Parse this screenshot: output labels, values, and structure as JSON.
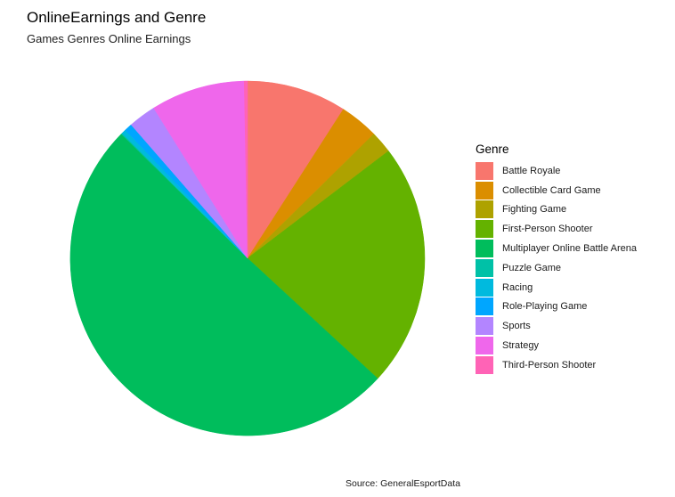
{
  "chart_data": {
    "type": "pie",
    "title": "OnlineEarnings and Genre",
    "subtitle": "Games Genres Online Earnings",
    "legend_title": "Genre",
    "legend_position": "right",
    "caption": "Source: GeneralEsportData",
    "grid": false,
    "slices": [
      {
        "label": "Battle Royale",
        "value": 9.0
      },
      {
        "label": "Collectible Card Game",
        "value": 3.5
      },
      {
        "label": "Fighting Game",
        "value": 2.0
      },
      {
        "label": "First-Person Shooter",
        "value": 22.0
      },
      {
        "label": "Multiplayer Online Battle Arena",
        "value": 50.0
      },
      {
        "label": "Puzzle Game",
        "value": 0.1
      },
      {
        "label": "Racing",
        "value": 0.4
      },
      {
        "label": "Role-Playing Game",
        "value": 0.7
      },
      {
        "label": "Sports",
        "value": 2.5
      },
      {
        "label": "Strategy",
        "value": 8.5
      },
      {
        "label": "Third-Person Shooter",
        "value": 0.3
      }
    ],
    "colors": {
      "Battle Royale": "#F8766D",
      "Collectible Card Game": "#DB8E00",
      "Fighting Game": "#AEA200",
      "First-Person Shooter": "#64B200",
      "Multiplayer Online Battle Arena": "#00BD5C",
      "Puzzle Game": "#00C1A7",
      "Racing": "#00BADE",
      "Role-Playing Game": "#00A6FF",
      "Sports": "#B385FF",
      "Strategy": "#EF67EB",
      "Third-Person Shooter": "#FF63B6"
    }
  }
}
